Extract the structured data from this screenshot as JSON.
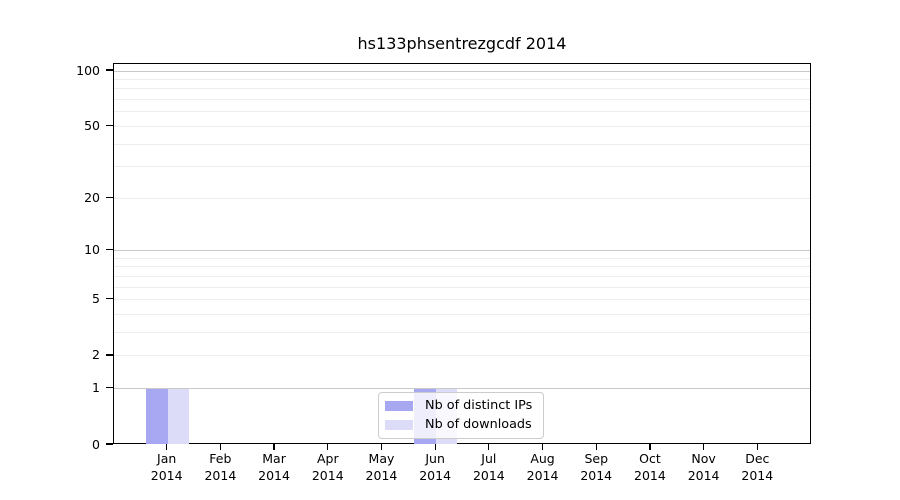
{
  "chart_data": {
    "type": "bar",
    "title": "hs133phsentrezgcdf 2014",
    "categories": [
      "Jan",
      "Feb",
      "Mar",
      "Apr",
      "May",
      "Jun",
      "Jul",
      "Aug",
      "Sep",
      "Oct",
      "Nov",
      "Dec"
    ],
    "year_label": "2014",
    "series": [
      {
        "name": "Nb of distinct IPs",
        "color": "#a8a8f2",
        "values": [
          1,
          0,
          0,
          0,
          0,
          1,
          0,
          0,
          0,
          0,
          0,
          0
        ]
      },
      {
        "name": "Nb of downloads",
        "color": "#dcdcf8",
        "values": [
          1,
          0,
          0,
          0,
          0,
          1,
          0,
          0,
          0,
          0,
          0,
          0
        ]
      }
    ],
    "yscale": "log1p",
    "ylim": [
      0,
      110
    ],
    "ytick_labels": [
      0,
      1,
      2,
      5,
      10,
      20,
      50,
      100
    ],
    "major_gridlines": [
      1,
      10,
      100
    ],
    "minor_gridlines": [
      2,
      3,
      4,
      5,
      6,
      7,
      8,
      9,
      20,
      30,
      40,
      50,
      60,
      70,
      80,
      90
    ],
    "grid_on": true,
    "legend_position": "lower center inside plot",
    "colors": {
      "grid_major": "#c9c9c9",
      "grid_minor": "#ededed",
      "axis": "#000000",
      "legend_border": "#cccccc"
    }
  }
}
